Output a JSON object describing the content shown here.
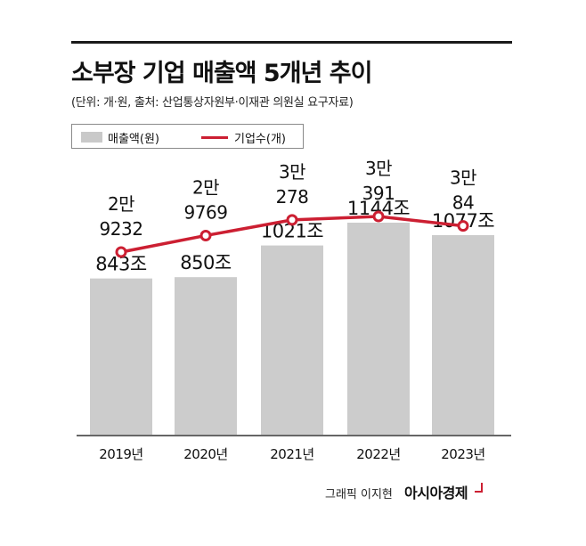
{
  "header": {
    "title": "소부장 기업 매출액 5개년 추이",
    "subtitle": "(단위: 개·원, 출처: 산업통상자원부·이재관 의원실 요구자료)"
  },
  "legend": {
    "bar_label": "매출액(원)",
    "line_label": "기업수(개)"
  },
  "chart_data": {
    "type": "bar",
    "categories": [
      "2019년",
      "2020년",
      "2021년",
      "2022년",
      "2023년"
    ],
    "series": [
      {
        "name": "매출액(원)",
        "type": "bar",
        "values": [
          843,
          850,
          1021,
          1144,
          1077
        ],
        "labels": [
          "843조",
          "850조",
          "1021조",
          "1144조",
          "1077조"
        ],
        "color": "#cccccc"
      },
      {
        "name": "기업수(개)",
        "type": "line",
        "values": [
          29232,
          29769,
          30278,
          30391,
          30084
        ],
        "labels": [
          [
            "2만",
            "9232"
          ],
          [
            "2만",
            "9769"
          ],
          [
            "3만",
            "278"
          ],
          [
            "3만",
            "391"
          ],
          [
            "3만",
            "84"
          ]
        ],
        "color": "#cc1f32"
      }
    ]
  },
  "credit": {
    "author": "그래픽 이지현",
    "brand": "아시아경제"
  }
}
